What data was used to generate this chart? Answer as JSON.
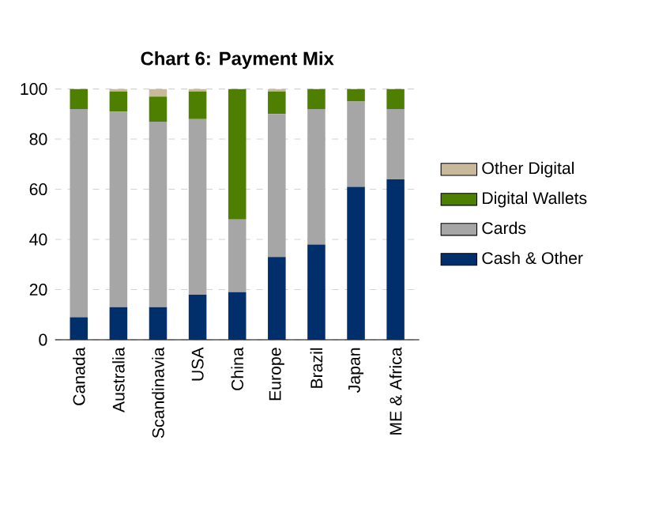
{
  "chart_data": {
    "type": "bar",
    "title": "**Chart 6: Payment Mix**",
    "stacked": true,
    "categories": [
      "Canada",
      "Australia",
      "Scandinavia",
      "USA",
      "China",
      "Europe",
      "Brazil",
      "Japan",
      "ME & Africa"
    ],
    "series": [
      {
        "name": "Cash & Other",
        "color": "#002f6c",
        "values": [
          9,
          13,
          13,
          18,
          19,
          33,
          38,
          61,
          64
        ]
      },
      {
        "name": "Cards",
        "color": "#a6a6a6",
        "values": [
          83,
          78,
          74,
          70,
          29,
          57,
          54,
          34,
          28
        ]
      },
      {
        "name": "Digital Wallets",
        "color": "#4f7f00",
        "values": [
          8,
          8,
          10,
          11,
          52,
          9,
          8,
          5,
          8
        ]
      },
      {
        "name": "Other Digital",
        "color": "#c8b99a",
        "values": [
          0,
          1,
          3,
          1,
          0,
          1,
          0,
          0,
          0
        ]
      }
    ],
    "ylim": [
      0,
      100
    ],
    "yticks": [
      0,
      20,
      40,
      60,
      80,
      100
    ],
    "grid": "y",
    "legend": "right"
  }
}
